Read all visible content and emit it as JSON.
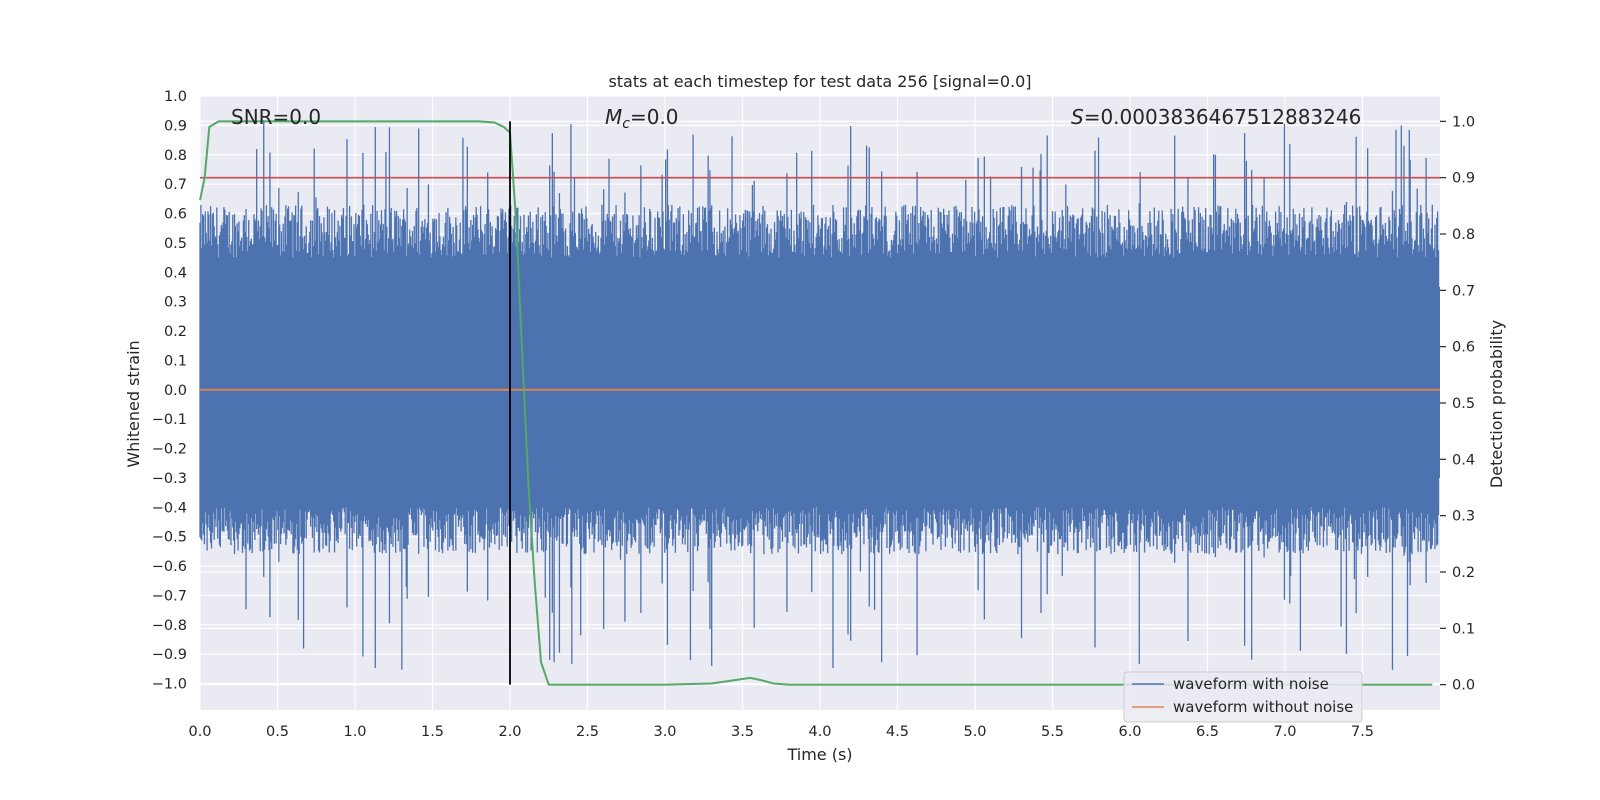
{
  "chart_data": {
    "type": "line",
    "title": "stats at each timestep for test data 256 [signal=0.0]",
    "xlabel": "Time (s)",
    "ylabel_left": "Whitened strain",
    "ylabel_right": "Detection probability",
    "xlim": [
      0.0,
      8.0
    ],
    "ylim_left": [
      -1.09,
      1.0
    ],
    "ylim_right": [
      -0.045,
      1.045
    ],
    "x_ticks": [
      0.0,
      0.5,
      1.0,
      1.5,
      2.0,
      2.5,
      3.0,
      3.5,
      4.0,
      4.5,
      5.0,
      5.5,
      6.0,
      6.5,
      7.0,
      7.5
    ],
    "x_tick_labels": [
      "0.0",
      "0.5",
      "1.0",
      "1.5",
      "2.0",
      "2.5",
      "3.0",
      "3.5",
      "4.0",
      "4.5",
      "5.0",
      "5.5",
      "6.0",
      "6.5",
      "7.0",
      "7.5"
    ],
    "y_left_ticks": [
      1.0,
      0.9,
      0.8,
      0.7,
      0.6,
      0.5,
      0.4,
      0.3,
      0.2,
      0.1,
      0.0,
      -0.1,
      -0.2,
      -0.3,
      -0.4,
      -0.5,
      -0.6,
      -0.7,
      -0.8,
      -0.9,
      -1.0
    ],
    "y_left_tick_labels": [
      "1.0",
      "0.9",
      "0.8",
      "0.7",
      "0.6",
      "0.5",
      "0.4",
      "0.3",
      "0.2",
      "0.1",
      "0.0",
      "−0.1",
      "−0.2",
      "−0.3",
      "−0.4",
      "−0.5",
      "−0.6",
      "−0.7",
      "−0.8",
      "−0.9",
      "−1.0"
    ],
    "y_right_ticks": [
      1.0,
      0.9,
      0.8,
      0.7,
      0.6,
      0.5,
      0.4,
      0.3,
      0.2,
      0.1,
      0.0
    ],
    "y_right_tick_labels": [
      "1.0",
      "0.9",
      "0.8",
      "0.7",
      "0.6",
      "0.5",
      "0.4",
      "0.3",
      "0.2",
      "0.1",
      "0.0"
    ],
    "annotations": {
      "snr": "SNR=0.0",
      "mc_symbol": "M",
      "mc_sub": "c",
      "mc_value": "=0.0",
      "s_symbol": "S",
      "s_value": "=0.0003836467512883246"
    },
    "threshold": {
      "value": 0.9,
      "axis": "right",
      "color": "#c44e52"
    },
    "vline": {
      "x": 2.0,
      "color": "#000000"
    },
    "series": [
      {
        "name": "waveform with noise",
        "color": "#4c72b0",
        "axis": "left",
        "kind": "noise",
        "envelope_pos": [
          0.45,
          0.93
        ],
        "envelope_neg": [
          -0.4,
          -0.97
        ],
        "sample_count": 1400
      },
      {
        "name": "waveform without noise",
        "color": "#dd8452",
        "axis": "left",
        "x": [
          0.0,
          8.0
        ],
        "y": [
          0.0,
          0.0
        ]
      },
      {
        "name": "detection probability",
        "color": "#55a868",
        "axis": "right",
        "x": [
          0.0,
          0.03,
          0.06,
          0.12,
          0.3,
          1.0,
          1.6,
          1.8,
          1.9,
          1.96,
          2.0,
          2.04,
          2.08,
          2.12,
          2.16,
          2.2,
          2.25,
          2.3,
          3.0,
          3.3,
          3.45,
          3.55,
          3.62,
          3.7,
          3.8,
          5.0,
          7.95
        ],
        "y": [
          0.86,
          0.9,
          0.99,
          1.0,
          1.0,
          1.0,
          1.0,
          1.0,
          0.998,
          0.99,
          0.98,
          0.82,
          0.58,
          0.35,
          0.18,
          0.04,
          0.0,
          0.0,
          0.0,
          0.002,
          0.008,
          0.012,
          0.008,
          0.002,
          0.0,
          0.0,
          0.0
        ]
      }
    ],
    "legend": {
      "position": "lower-right",
      "entries": [
        {
          "label": "waveform with noise",
          "color": "#4c72b0"
        },
        {
          "label": "waveform without noise",
          "color": "#dd8452"
        }
      ]
    },
    "style": {
      "plot_bg": "#eaeaf2",
      "grid": "#ffffff",
      "text": "#262626"
    }
  }
}
